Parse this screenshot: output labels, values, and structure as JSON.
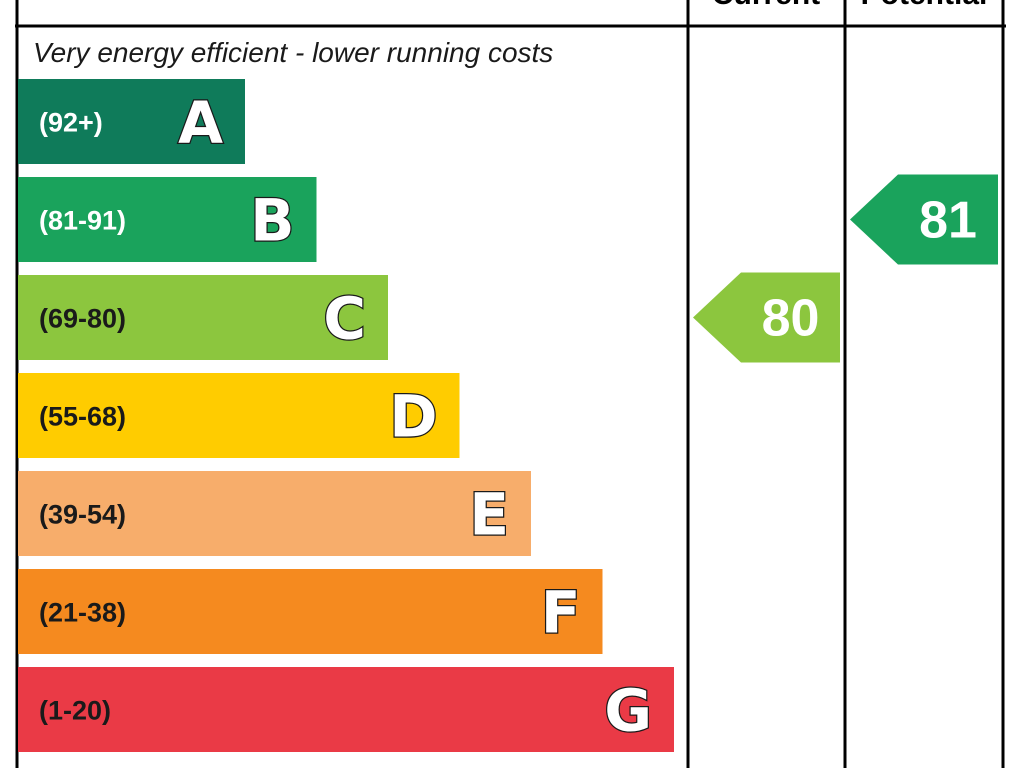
{
  "chart_data": {
    "type": "energy-rating-bar",
    "top_caption": "Very energy efficient - lower running costs",
    "columns": {
      "current": "Current",
      "potential": "Potential"
    },
    "bands": [
      {
        "letter": "A",
        "range": "(92+)",
        "min": 92,
        "max": 100,
        "color": "#0f7b5a",
        "range_text_color": "#ffffff"
      },
      {
        "letter": "B",
        "range": "(81-91)",
        "min": 81,
        "max": 91,
        "color": "#1aa35c",
        "range_text_color": "#ffffff"
      },
      {
        "letter": "C",
        "range": "(69-80)",
        "min": 69,
        "max": 80,
        "color": "#8cc63e",
        "range_text_color": "#1a1a1a"
      },
      {
        "letter": "D",
        "range": "(55-68)",
        "min": 55,
        "max": 68,
        "color": "#ffcc00",
        "range_text_color": "#1a1a1a"
      },
      {
        "letter": "E",
        "range": "(39-54)",
        "min": 39,
        "max": 54,
        "color": "#f7ad6b",
        "range_text_color": "#1a1a1a"
      },
      {
        "letter": "F",
        "range": "(21-38)",
        "min": 21,
        "max": 38,
        "color": "#f58a1f",
        "range_text_color": "#1a1a1a"
      },
      {
        "letter": "G",
        "range": "(1-20)",
        "min": 1,
        "max": 20,
        "color": "#ea3a46",
        "range_text_color": "#1a1a1a"
      }
    ],
    "current": {
      "value": "80",
      "band": "C",
      "color": "#8cc63e"
    },
    "potential": {
      "value": "81",
      "band": "B",
      "color": "#1aa35c"
    }
  }
}
